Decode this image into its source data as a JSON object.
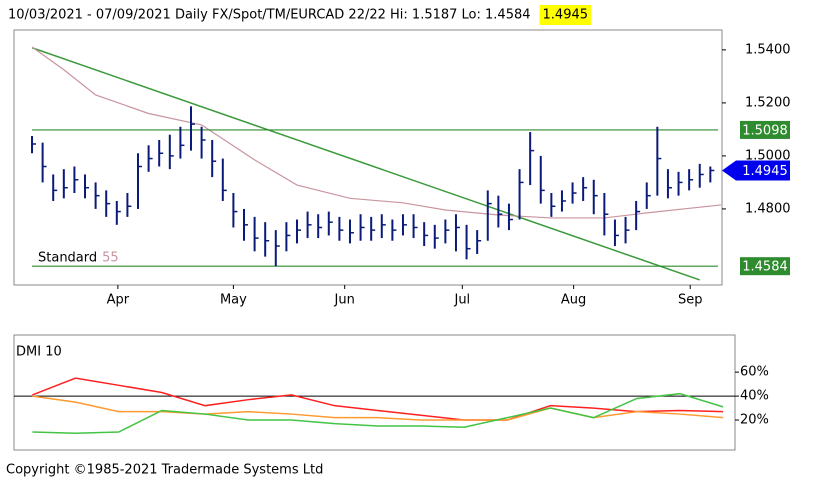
{
  "chart_data": [
    {
      "type": "ohlc",
      "title": "10/03/2021 - 07/09/2021  Daily  FX/Spot/TM/EURCAD 22/22  Hi: 1.5187 Lo: 1.4584",
      "last_price": 1.4945,
      "last_color": "#0000ee",
      "highlight": "#ffff00",
      "color": "#0a1a7a",
      "x": [
        0,
        1,
        2,
        3,
        4,
        5,
        6,
        7,
        8,
        9,
        10,
        11,
        12,
        13,
        14,
        15,
        16,
        17,
        18,
        19,
        20,
        21,
        22,
        23,
        24,
        25,
        26,
        27,
        28,
        29,
        30,
        31,
        32,
        33,
        34,
        35,
        36,
        37,
        38,
        39,
        40,
        41,
        42,
        43,
        44,
        45,
        46,
        47,
        48,
        49,
        50,
        51,
        52,
        53,
        54,
        55,
        56,
        57,
        58,
        59,
        60,
        61,
        62,
        63,
        64
      ],
      "high": [
        1.5075,
        1.505,
        1.493,
        1.495,
        1.496,
        1.493,
        1.49,
        1.487,
        1.483,
        1.486,
        1.501,
        1.504,
        1.506,
        1.508,
        1.511,
        1.5187,
        1.511,
        1.506,
        1.499,
        1.486,
        1.48,
        1.477,
        1.475,
        1.472,
        1.475,
        1.476,
        1.479,
        1.478,
        1.479,
        1.477,
        1.476,
        1.478,
        1.477,
        1.478,
        1.476,
        1.478,
        1.478,
        1.475,
        1.474,
        1.476,
        1.478,
        1.474,
        1.472,
        1.487,
        1.485,
        1.482,
        1.495,
        1.509,
        1.5,
        1.486,
        1.487,
        1.49,
        1.492,
        1.491,
        1.486,
        1.476,
        1.477,
        1.483,
        1.49,
        1.511,
        1.495,
        1.494,
        1.495,
        1.497,
        1.496
      ],
      "low": [
        1.501,
        1.49,
        1.483,
        1.484,
        1.486,
        1.484,
        1.48,
        1.477,
        1.474,
        1.477,
        1.48,
        1.494,
        1.496,
        1.495,
        1.499,
        1.502,
        1.499,
        1.492,
        1.483,
        1.473,
        1.468,
        1.464,
        1.462,
        1.4584,
        1.464,
        1.467,
        1.469,
        1.469,
        1.47,
        1.468,
        1.467,
        1.468,
        1.468,
        1.469,
        1.468,
        1.47,
        1.469,
        1.466,
        1.465,
        1.467,
        1.464,
        1.461,
        1.463,
        1.468,
        1.473,
        1.472,
        1.476,
        1.489,
        1.482,
        1.477,
        1.479,
        1.482,
        1.483,
        1.478,
        1.47,
        1.466,
        1.467,
        1.472,
        1.48,
        1.485,
        1.484,
        1.485,
        1.487,
        1.488,
        1.49
      ],
      "close": [
        1.5045,
        1.496,
        1.487,
        1.488,
        1.491,
        1.488,
        1.485,
        1.482,
        1.479,
        1.481,
        1.496,
        1.499,
        1.501,
        1.5,
        1.504,
        1.512,
        1.506,
        1.498,
        1.487,
        1.479,
        1.474,
        1.469,
        1.468,
        1.466,
        1.47,
        1.472,
        1.474,
        1.473,
        1.475,
        1.472,
        1.471,
        1.473,
        1.472,
        1.474,
        1.472,
        1.474,
        1.473,
        1.47,
        1.469,
        1.472,
        1.473,
        1.465,
        1.468,
        1.482,
        1.478,
        1.476,
        1.49,
        1.502,
        1.487,
        1.481,
        1.483,
        1.486,
        1.488,
        1.485,
        1.478,
        1.47,
        1.472,
        1.479,
        1.485,
        1.499,
        1.488,
        1.49,
        1.491,
        1.493,
        1.4945
      ],
      "ma": {
        "label": "Standard",
        "period": 55,
        "color": "#c9959f",
        "x": [
          0,
          3,
          6,
          11,
          16,
          21,
          25,
          30,
          35,
          39,
          44,
          49,
          54,
          58,
          65
        ],
        "values": [
          1.5411,
          1.5325,
          1.523,
          1.516,
          1.5117,
          1.4985,
          1.489,
          1.484,
          1.4823,
          1.4796,
          1.4777,
          1.4766,
          1.4766,
          1.4785,
          1.4815
        ]
      },
      "trendline": {
        "color": "#3a9a3a",
        "x": [
          0,
          63
        ],
        "values": [
          1.5408,
          1.4532
        ]
      },
      "levels": [
        {
          "value": 1.5098,
          "color": "#2e8b2e"
        },
        {
          "value": 1.4584,
          "color": "#2e8b2e"
        }
      ],
      "xlim": [
        -1.7,
        65.1
      ],
      "ylim": [
        1.4513,
        1.5475
      ],
      "xticks": [
        {
          "value": 8.1,
          "label": "Apr"
        },
        {
          "value": 19,
          "label": "May"
        },
        {
          "value": 29.5,
          "label": "Jun"
        },
        {
          "value": 40.6,
          "label": "Jul"
        },
        {
          "value": 51.1,
          "label": "Aug"
        },
        {
          "value": 62.1,
          "label": "Sep"
        }
      ],
      "yticks": [
        {
          "value": 1.54,
          "label": "1.5400"
        },
        {
          "value": 1.52,
          "label": "1.5200"
        },
        {
          "value": 1.5,
          "label": "1.5000"
        },
        {
          "value": 1.48,
          "label": "1.4800"
        }
      ]
    },
    {
      "type": "line",
      "title": "DMI 10",
      "x": [
        0,
        4,
        8,
        12,
        16,
        20,
        24,
        28,
        32,
        36,
        40,
        44,
        48,
        52,
        56,
        60,
        64
      ],
      "series": [
        {
          "color": "#ff2020",
          "values": [
            41,
            55,
            49,
            43,
            32,
            37,
            41,
            32,
            28,
            24,
            20,
            20,
            32,
            30,
            27,
            28,
            27
          ]
        },
        {
          "color": "#ff9a30",
          "values": [
            40,
            35,
            27,
            27,
            25,
            27,
            25,
            22,
            22,
            20,
            20,
            20,
            30,
            22,
            27,
            25,
            22
          ]
        },
        {
          "color": "#44c444",
          "values": [
            10,
            9,
            10,
            28,
            25,
            20,
            20,
            17,
            15,
            15,
            14,
            22,
            30,
            22,
            38,
            42,
            31
          ]
        }
      ],
      "reference": 40,
      "xlim": [
        -1.7,
        65.1
      ],
      "ylim": [
        -5,
        91
      ],
      "yticks": [
        {
          "value": 60,
          "label": "60%"
        },
        {
          "value": 40,
          "label": "40%"
        },
        {
          "value": 20,
          "label": "20%"
        }
      ]
    }
  ],
  "footer": "Copyright ©1985-2021 Tradermade Systems Ltd"
}
